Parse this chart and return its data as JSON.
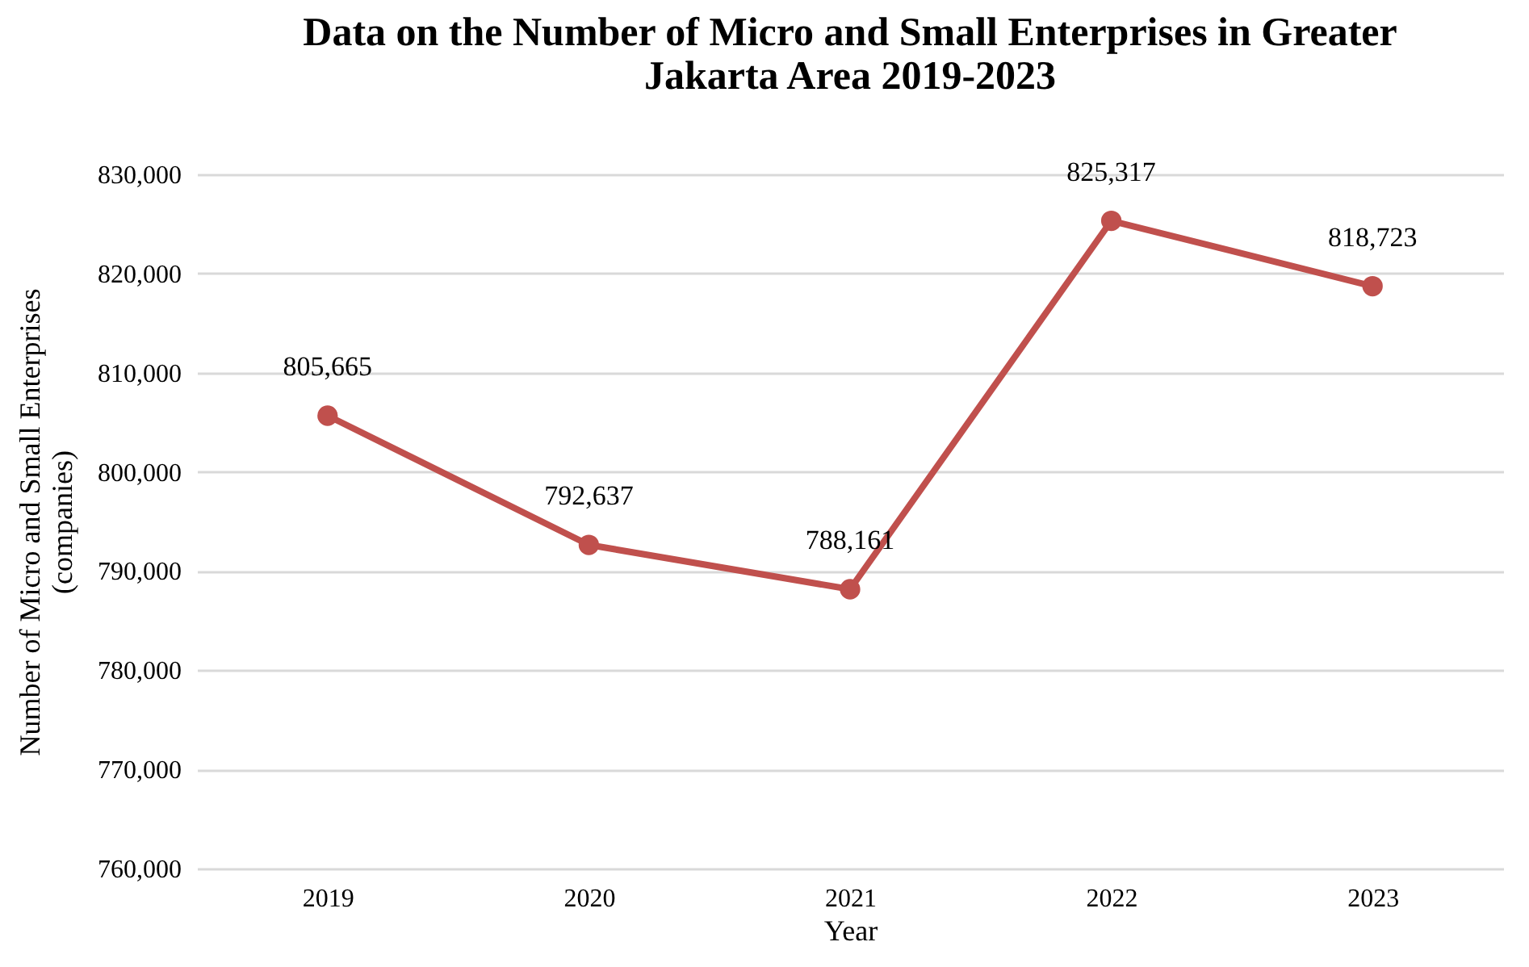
{
  "chart_data": {
    "type": "line",
    "title": "Data on the Number of Micro and Small Enterprises in Greater\nJakarta Area 2019-2023",
    "xlabel": "Year",
    "ylabel": "Number of Micro and Small Enterprises\n(companies)",
    "categories": [
      "2019",
      "2020",
      "2021",
      "2022",
      "2023"
    ],
    "series": [
      {
        "color": "#c0504d",
        "values": [
          805665,
          792637,
          788161,
          825317,
          818723
        ],
        "value_labels": [
          "805,665",
          "792,637",
          "788,161",
          "825,317",
          "818,723"
        ]
      }
    ],
    "ylim": [
      760000,
      830000
    ],
    "yticks": [
      {
        "value": 760000,
        "label": "760,000"
      },
      {
        "value": 770000,
        "label": "770,000"
      },
      {
        "value": 780000,
        "label": "780,000"
      },
      {
        "value": 790000,
        "label": "790,000"
      },
      {
        "value": 800000,
        "label": "800,000"
      },
      {
        "value": 810000,
        "label": "810,000"
      },
      {
        "value": 820000,
        "label": "820,000"
      },
      {
        "value": 830000,
        "label": "830,000"
      }
    ],
    "grid": "y",
    "legend": false,
    "marker": "circle",
    "line_style": "solid"
  }
}
